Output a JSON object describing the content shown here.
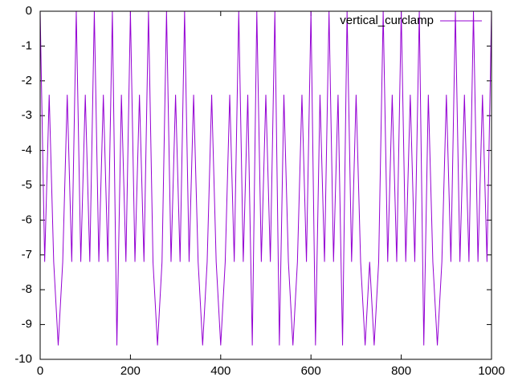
{
  "chart_data": {
    "type": "line",
    "x": [
      0,
      10,
      20,
      30,
      40,
      50,
      60,
      70,
      80,
      90,
      100,
      110,
      120,
      130,
      140,
      150,
      160,
      170,
      180,
      190,
      200,
      210,
      220,
      230,
      240,
      250,
      260,
      270,
      280,
      290,
      300,
      310,
      320,
      330,
      340,
      350,
      360,
      370,
      380,
      390,
      400,
      410,
      420,
      430,
      440,
      450,
      460,
      470,
      480,
      490,
      500,
      510,
      520,
      530,
      540,
      550,
      560,
      570,
      580,
      590,
      600,
      610,
      620,
      630,
      640,
      650,
      660,
      670,
      680,
      690,
      700,
      710,
      720,
      730,
      740,
      750,
      760,
      770,
      780,
      790,
      800,
      810,
      820,
      830,
      840,
      850,
      860,
      870,
      880,
      890,
      900,
      910,
      920,
      930,
      940,
      950,
      960,
      970,
      980,
      990,
      1000
    ],
    "series": [
      {
        "name": "vertical_curclamp",
        "color": "#9400d3",
        "values": [
          0,
          -7.2,
          -2.4,
          -7.2,
          -9.6,
          -7.2,
          -2.4,
          -7.2,
          0,
          -7.2,
          -2.4,
          -7.2,
          0,
          -7.2,
          -2.4,
          -7.2,
          0,
          -9.6,
          -2.4,
          -7.2,
          0,
          -7.2,
          -2.4,
          -7.2,
          0,
          -7.2,
          -9.6,
          -7.2,
          0,
          -7.2,
          -2.4,
          -7.2,
          0,
          -7.2,
          -2.4,
          -7.2,
          -9.6,
          -7.2,
          -2.4,
          -7.2,
          -9.6,
          -7.2,
          -2.4,
          -7.2,
          0,
          -7.2,
          -2.4,
          -9.6,
          0,
          -7.2,
          -2.4,
          -7.2,
          0,
          -9.6,
          -2.4,
          -7.2,
          -9.6,
          -7.2,
          -2.4,
          -7.2,
          0,
          -9.6,
          -2.4,
          -7.2,
          0,
          -7.2,
          -2.4,
          -9.6,
          0,
          -7.2,
          -2.4,
          -7.2,
          -9.6,
          -7.2,
          -9.6,
          -7.2,
          0,
          -7.2,
          -2.4,
          -7.2,
          0,
          -7.2,
          -2.4,
          -7.2,
          0,
          -9.6,
          -2.4,
          -7.2,
          -9.6,
          -7.2,
          -2.4,
          -7.2,
          0,
          -7.2,
          -2.4,
          -7.2,
          0,
          -7.2,
          -2.4,
          -7.2,
          0
        ]
      }
    ],
    "xlim": [
      0,
      1000
    ],
    "xticks": [
      0,
      200,
      400,
      600,
      800,
      1000
    ],
    "ylim": [
      -10,
      0
    ],
    "yticks": [
      -10,
      -9,
      -8,
      -7,
      -6,
      -5,
      -4,
      -3,
      -2,
      -1,
      0
    ],
    "grid": false,
    "legend": "top-right"
  }
}
